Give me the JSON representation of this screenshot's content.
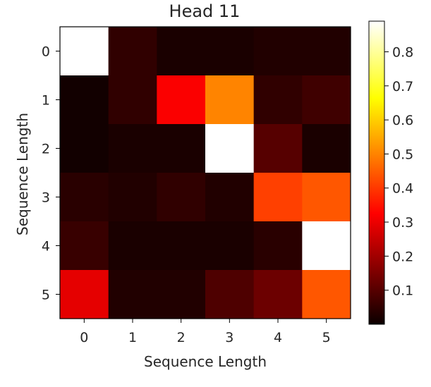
{
  "chart_data": {
    "type": "heatmap",
    "title": "Head 11",
    "xlabel": "Sequence Length",
    "ylabel": "Sequence Length",
    "x_categories": [
      "0",
      "1",
      "2",
      "3",
      "4",
      "5"
    ],
    "y_categories": [
      "0",
      "1",
      "2",
      "3",
      "4",
      "5"
    ],
    "colormap": "hot",
    "value_range": [
      0.0,
      0.89
    ],
    "colorbar_ticks": [
      "0.1",
      "0.2",
      "0.3",
      "0.4",
      "0.5",
      "0.6",
      "0.7",
      "0.8"
    ],
    "values": [
      [
        0.89,
        0.05,
        0.02,
        0.02,
        0.03,
        0.03
      ],
      [
        0.01,
        0.05,
        0.32,
        0.5,
        0.05,
        0.07
      ],
      [
        0.01,
        0.02,
        0.02,
        0.89,
        0.1,
        0.02
      ],
      [
        0.04,
        0.03,
        0.05,
        0.03,
        0.41,
        0.44
      ],
      [
        0.06,
        0.02,
        0.02,
        0.02,
        0.04,
        0.9
      ],
      [
        0.29,
        0.03,
        0.03,
        0.09,
        0.13,
        0.44
      ]
    ]
  }
}
